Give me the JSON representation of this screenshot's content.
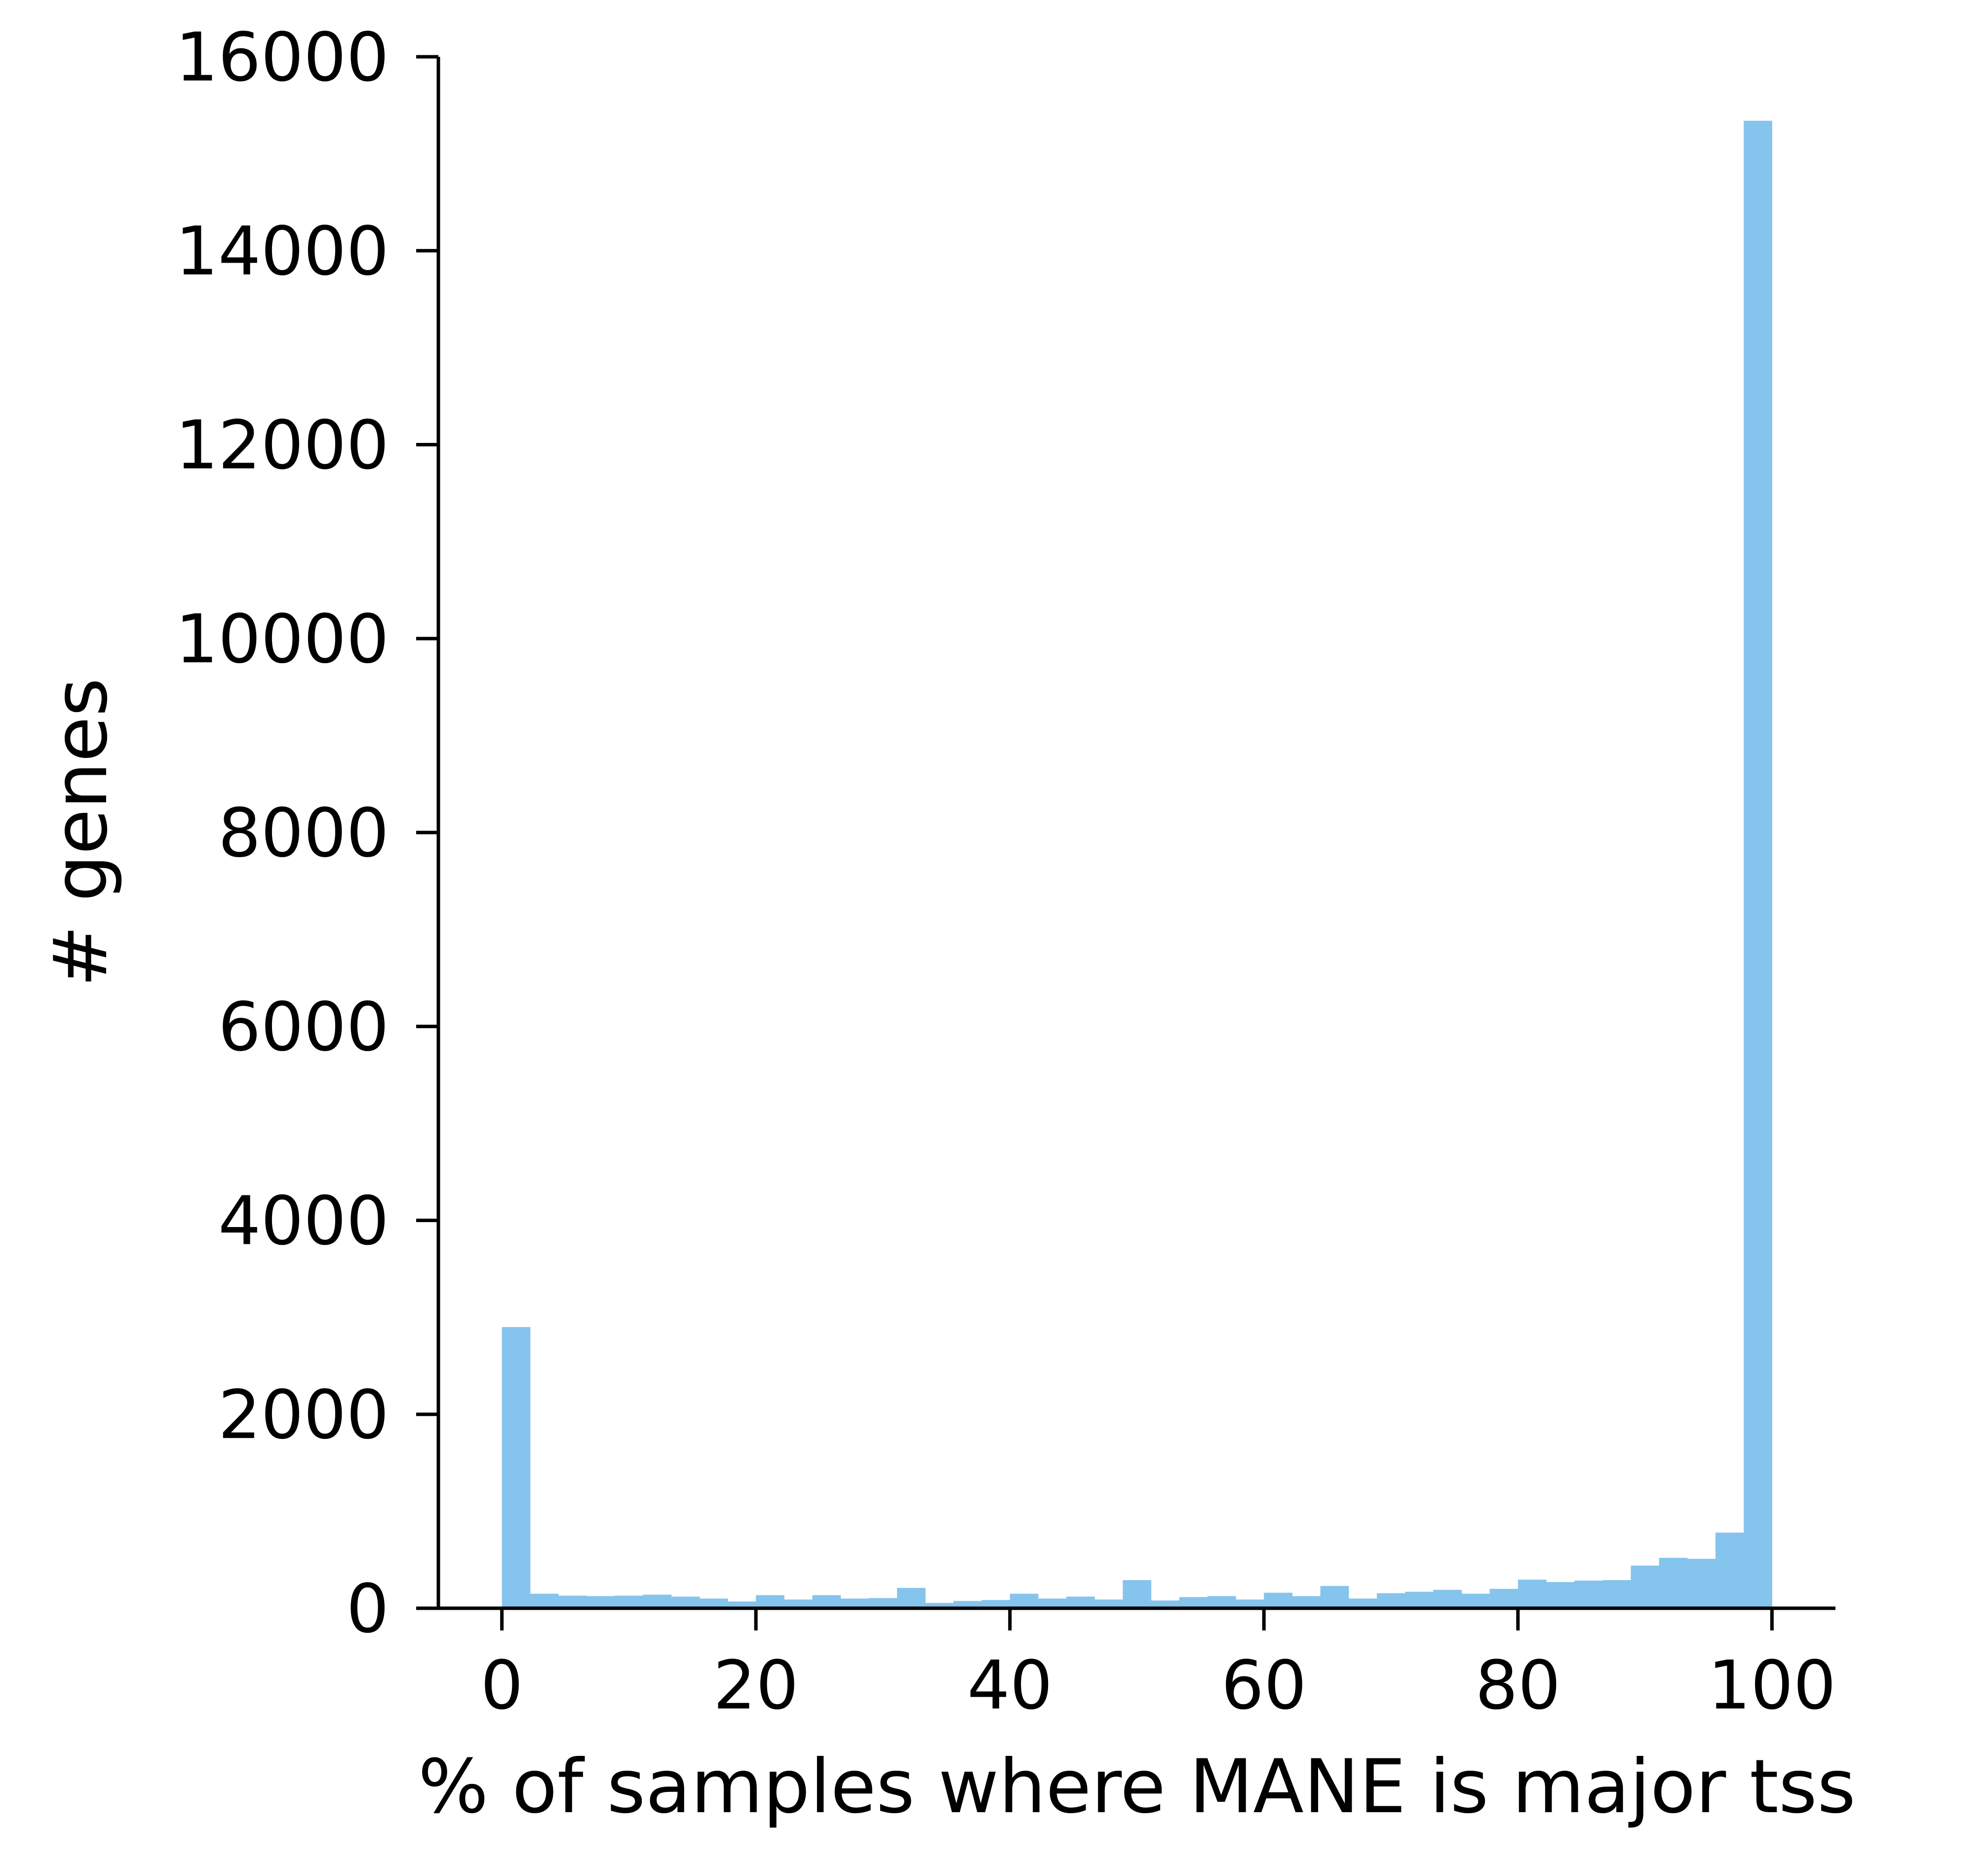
{
  "chart_data": {
    "type": "bar",
    "histogram": true,
    "xlabel": "% of samples where MANE is major tss",
    "ylabel": "# genes",
    "xlim": [
      -5,
      105
    ],
    "ylim": [
      0,
      16150
    ],
    "xticks": [
      0,
      20,
      40,
      60,
      80,
      100
    ],
    "yticks": [
      0,
      2000,
      4000,
      6000,
      8000,
      10000,
      12000,
      14000,
      16000
    ],
    "bin_start": 0,
    "bin_width": 2.2222,
    "values": [
      2900,
      150,
      130,
      125,
      130,
      140,
      120,
      100,
      70,
      135,
      90,
      135,
      100,
      105,
      210,
      55,
      75,
      85,
      150,
      100,
      120,
      90,
      290,
      80,
      115,
      125,
      90,
      160,
      125,
      230,
      100,
      155,
      170,
      190,
      150,
      200,
      295,
      270,
      285,
      290,
      440,
      520,
      510,
      780,
      15340
    ],
    "bar_color": "#85C4EC",
    "grid": false,
    "legend": "none"
  }
}
